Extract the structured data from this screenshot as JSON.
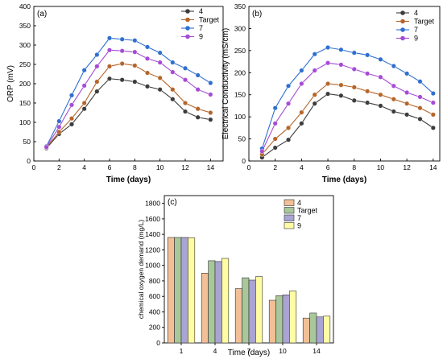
{
  "colors": {
    "4": "#3c3c3c",
    "Target": "#b5652a",
    "7": "#2f6fd0",
    "9": "#a54bd6",
    "bar_4": "#f2bf96",
    "bar_Target": "#a8c79b",
    "bar_7": "#a9a4d4",
    "bar_9": "#fffca3"
  },
  "chart_data": [
    {
      "type": "line",
      "panel": "(a)",
      "title": "",
      "xlabel": "Time (days)",
      "ylabel": "ORP (mV)",
      "xlim": [
        0,
        15
      ],
      "ylim": [
        0,
        400
      ],
      "xticks": [
        0,
        2,
        4,
        6,
        8,
        10,
        12,
        14
      ],
      "yticks": [
        0,
        50,
        100,
        150,
        200,
        250,
        300,
        350,
        400
      ],
      "legend_position": "top-right",
      "x": [
        1,
        2,
        3,
        4,
        5,
        6,
        7,
        8,
        9,
        10,
        11,
        12,
        13,
        14
      ],
      "series": [
        {
          "name": "4",
          "values": [
            33,
            70,
            95,
            135,
            180,
            213,
            210,
            205,
            193,
            185,
            160,
            128,
            113,
            107
          ]
        },
        {
          "name": "Target",
          "values": [
            35,
            75,
            110,
            150,
            205,
            245,
            252,
            247,
            228,
            215,
            185,
            150,
            135,
            125
          ]
        },
        {
          "name": "7",
          "values": [
            38,
            103,
            170,
            235,
            275,
            318,
            315,
            312,
            295,
            280,
            255,
            240,
            222,
            202
          ]
        },
        {
          "name": "9",
          "values": [
            36,
            88,
            145,
            195,
            245,
            287,
            285,
            282,
            265,
            255,
            230,
            210,
            185,
            172
          ]
        }
      ]
    },
    {
      "type": "line",
      "panel": "(b)",
      "title": "",
      "xlabel": "Time (days)",
      "ylabel": "Electrical Conductivity (mS/cm)",
      "xlim": [
        0,
        14.5
      ],
      "ylim": [
        0,
        350
      ],
      "xticks": [
        0,
        2,
        4,
        6,
        8,
        10,
        12,
        14
      ],
      "yticks": [
        0,
        50,
        100,
        150,
        200,
        250,
        300,
        350
      ],
      "legend_position": "top-right",
      "x": [
        1,
        2,
        3,
        4,
        5,
        6,
        7,
        8,
        9,
        10,
        11,
        12,
        13,
        14
      ],
      "series": [
        {
          "name": "4",
          "values": [
            8,
            30,
            48,
            85,
            130,
            152,
            148,
            137,
            132,
            125,
            112,
            105,
            95,
            75
          ]
        },
        {
          "name": "Target",
          "values": [
            15,
            50,
            75,
            110,
            150,
            175,
            172,
            167,
            158,
            150,
            140,
            130,
            120,
            105
          ]
        },
        {
          "name": "7",
          "values": [
            28,
            120,
            170,
            205,
            242,
            257,
            252,
            245,
            240,
            230,
            215,
            198,
            180,
            153
          ]
        },
        {
          "name": "9",
          "values": [
            22,
            85,
            130,
            175,
            205,
            222,
            218,
            208,
            198,
            190,
            170,
            155,
            145,
            132
          ]
        }
      ]
    },
    {
      "type": "bar",
      "panel": "(c)",
      "title": "",
      "xlabel": "Time (days)",
      "ylabel": "chemical oxygen demand (mg/L)",
      "ylim": [
        0,
        1900
      ],
      "yticks": [
        0,
        200,
        400,
        600,
        800,
        1000,
        1200,
        1400,
        1600,
        1800
      ],
      "categories": [
        "1",
        "4",
        "7",
        "10",
        "14"
      ],
      "legend_position": "top-right",
      "series": [
        {
          "name": "4",
          "values": [
            1360,
            900,
            700,
            550,
            320
          ]
        },
        {
          "name": "Target",
          "values": [
            1360,
            1060,
            840,
            610,
            385
          ]
        },
        {
          "name": "7",
          "values": [
            1360,
            1050,
            810,
            620,
            335
          ]
        },
        {
          "name": "9",
          "values": [
            1355,
            1090,
            855,
            670,
            345
          ]
        }
      ]
    }
  ]
}
